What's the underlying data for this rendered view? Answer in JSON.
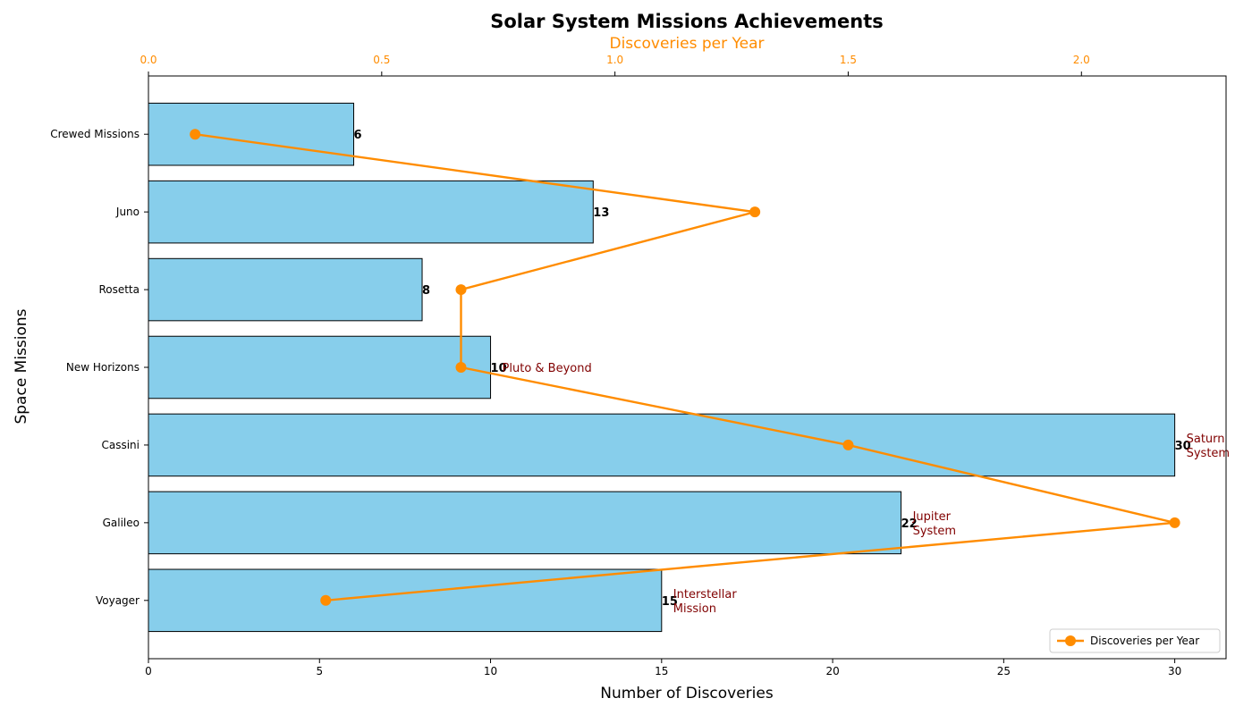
{
  "chart_data": {
    "type": "bar",
    "orientation": "horizontal",
    "title": "Solar System Missions Achievements",
    "xlabel": "Number of Discoveries",
    "ylabel": "Space Missions",
    "secondary_xlabel": "Discoveries per Year",
    "xlim": [
      0,
      31.5
    ],
    "secondary_xlim": [
      0,
      2.31
    ],
    "xticks": [
      0,
      5,
      10,
      15,
      20,
      25,
      30
    ],
    "secondary_xticks": [
      0.0,
      0.5,
      1.0,
      1.5,
      2.0
    ],
    "secondary_xtick_labels": [
      "0.0",
      "0.5",
      "1.0",
      "1.5",
      "2.0"
    ],
    "categories": [
      "Voyager",
      "Galileo",
      "Cassini",
      "New Horizons",
      "Rosetta",
      "Juno",
      "Crewed Missions"
    ],
    "values": [
      15,
      22,
      30,
      10,
      8,
      13,
      6
    ],
    "annotations": [
      {
        "category": "Voyager",
        "lines": [
          "Interstellar",
          "Mission"
        ]
      },
      {
        "category": "Galileo",
        "lines": [
          "Jupiter",
          "System"
        ]
      },
      {
        "category": "Cassini",
        "lines": [
          "Saturn",
          "System"
        ]
      },
      {
        "category": "New Horizons",
        "lines": [
          "Pluto & Beyond"
        ]
      }
    ],
    "line_series": {
      "name": "Discoveries per Year",
      "values": [
        0.38,
        2.2,
        1.5,
        0.67,
        0.67,
        1.3,
        0.1
      ]
    },
    "legend_position": "bottom-right",
    "grid": false,
    "colors": {
      "bar": "#87ceeb",
      "bar_edge": "#000000",
      "line": "#ff8c00",
      "annotation": "#800000"
    }
  }
}
